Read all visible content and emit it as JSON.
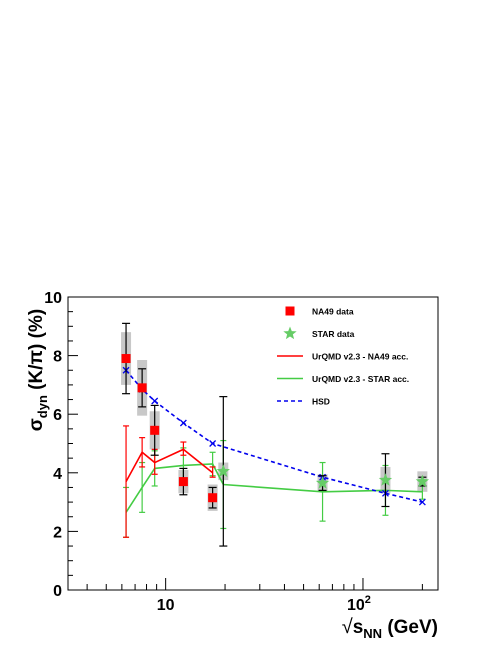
{
  "chart_data": {
    "type": "scatter",
    "title": "",
    "xlabel": {
      "prefix": "√",
      "main": "s",
      "sub": "NN",
      "unit": " (GeV)"
    },
    "ylabel": {
      "main": "σ",
      "sub": "dyn",
      "rest": " (K/π) (%)"
    },
    "xscale": "log",
    "xlim": [
      3.2,
      240
    ],
    "ylim": [
      0,
      10
    ],
    "yticks": [
      0,
      2,
      4,
      6,
      8,
      10
    ],
    "xticklabels": [
      {
        "x": 10,
        "base": "10",
        "exp": ""
      },
      {
        "x": 100,
        "base": "10",
        "exp": "2"
      }
    ],
    "grid": false,
    "legend_position": "top-right",
    "colors": {
      "na49": "#ff0000",
      "star": "#66cc66",
      "urqmd_na49": "#ff0000",
      "urqmd_star": "#44cc44",
      "hsd": "#0000ee",
      "stat_error": "#000000",
      "sys_band": "#c8c8c8"
    },
    "legend": [
      {
        "key": "na49",
        "label": "NA49 data",
        "marker": "square"
      },
      {
        "key": "star",
        "label": "STAR data",
        "marker": "star"
      },
      {
        "key": "urqmd_na49",
        "label": "UrQMD v2.3 - NA49 acc.",
        "marker": "line"
      },
      {
        "key": "urqmd_star",
        "label": "UrQMD v2.3 - STAR acc.",
        "marker": "line"
      },
      {
        "key": "hsd",
        "label": "HSD",
        "marker": "dashed"
      }
    ],
    "series": [
      {
        "key": "na49",
        "name": "NA49 data",
        "points": [
          {
            "x": 6.3,
            "y": 7.9,
            "err": 1.2,
            "sys": 0.9
          },
          {
            "x": 7.6,
            "y": 6.9,
            "err": 0.65,
            "sys": 0.95
          },
          {
            "x": 8.8,
            "y": 5.45,
            "err": 0.85,
            "sys": 0.65
          },
          {
            "x": 12.3,
            "y": 3.7,
            "err": 0.45,
            "sys": 0.4
          },
          {
            "x": 17.3,
            "y": 3.15,
            "err": 0.35,
            "sys": 0.45
          }
        ]
      },
      {
        "key": "star",
        "name": "STAR data",
        "points": [
          {
            "x": 19.6,
            "y": 4.05,
            "err": 2.55,
            "sys": 0.3
          },
          {
            "x": 62.4,
            "y": 3.65,
            "err": 0.25,
            "sys": 0.3
          },
          {
            "x": 130,
            "y": 3.75,
            "err": 0.9,
            "sys": 0.45
          },
          {
            "x": 200,
            "y": 3.7,
            "err": 0.15,
            "sys": 0.35
          }
        ]
      },
      {
        "key": "urqmd_na49",
        "name": "UrQMD v2.3 - NA49 acc.",
        "points": [
          {
            "x": 6.3,
            "y": 3.7,
            "lo": 1.8,
            "hi": 5.6
          },
          {
            "x": 7.6,
            "y": 4.7,
            "lo": 4.2,
            "hi": 5.2
          },
          {
            "x": 8.8,
            "y": 4.35,
            "lo": 3.95,
            "hi": 4.8
          },
          {
            "x": 12.3,
            "y": 4.8,
            "lo": 4.6,
            "hi": 5.05
          },
          {
            "x": 17.3,
            "y": 4.0,
            "lo": 3.85,
            "hi": 4.2
          }
        ]
      },
      {
        "key": "urqmd_star",
        "name": "UrQMD v2.3 - STAR acc.",
        "points": [
          {
            "x": 6.3,
            "y": 2.65,
            "lo": 1.8,
            "hi": 3.5
          },
          {
            "x": 7.6,
            "y": 3.5,
            "lo": 2.65,
            "hi": 4.35
          },
          {
            "x": 8.8,
            "y": 4.15,
            "lo": 3.55,
            "hi": 4.75
          },
          {
            "x": 12.3,
            "y": 4.25,
            "lo": 3.65,
            "hi": 4.85
          },
          {
            "x": 17.3,
            "y": 4.3,
            "lo": 3.9,
            "hi": 4.7
          },
          {
            "x": 19.6,
            "y": 3.6,
            "lo": 2.1,
            "hi": 5.1
          },
          {
            "x": 62.4,
            "y": 3.35,
            "lo": 2.35,
            "hi": 4.35
          },
          {
            "x": 130,
            "y": 3.4,
            "lo": 2.55,
            "hi": 4.25
          },
          {
            "x": 200,
            "y": 3.35,
            "lo": 3.1,
            "hi": 3.6
          }
        ]
      },
      {
        "key": "hsd",
        "name": "HSD",
        "points": [
          {
            "x": 6.3,
            "y": 7.5
          },
          {
            "x": 7.6,
            "y": 6.85
          },
          {
            "x": 8.8,
            "y": 6.45
          },
          {
            "x": 12.3,
            "y": 5.7
          },
          {
            "x": 17.3,
            "y": 5.0
          },
          {
            "x": 62.4,
            "y": 3.85
          },
          {
            "x": 130,
            "y": 3.3
          },
          {
            "x": 200,
            "y": 3.0
          }
        ]
      }
    ]
  }
}
